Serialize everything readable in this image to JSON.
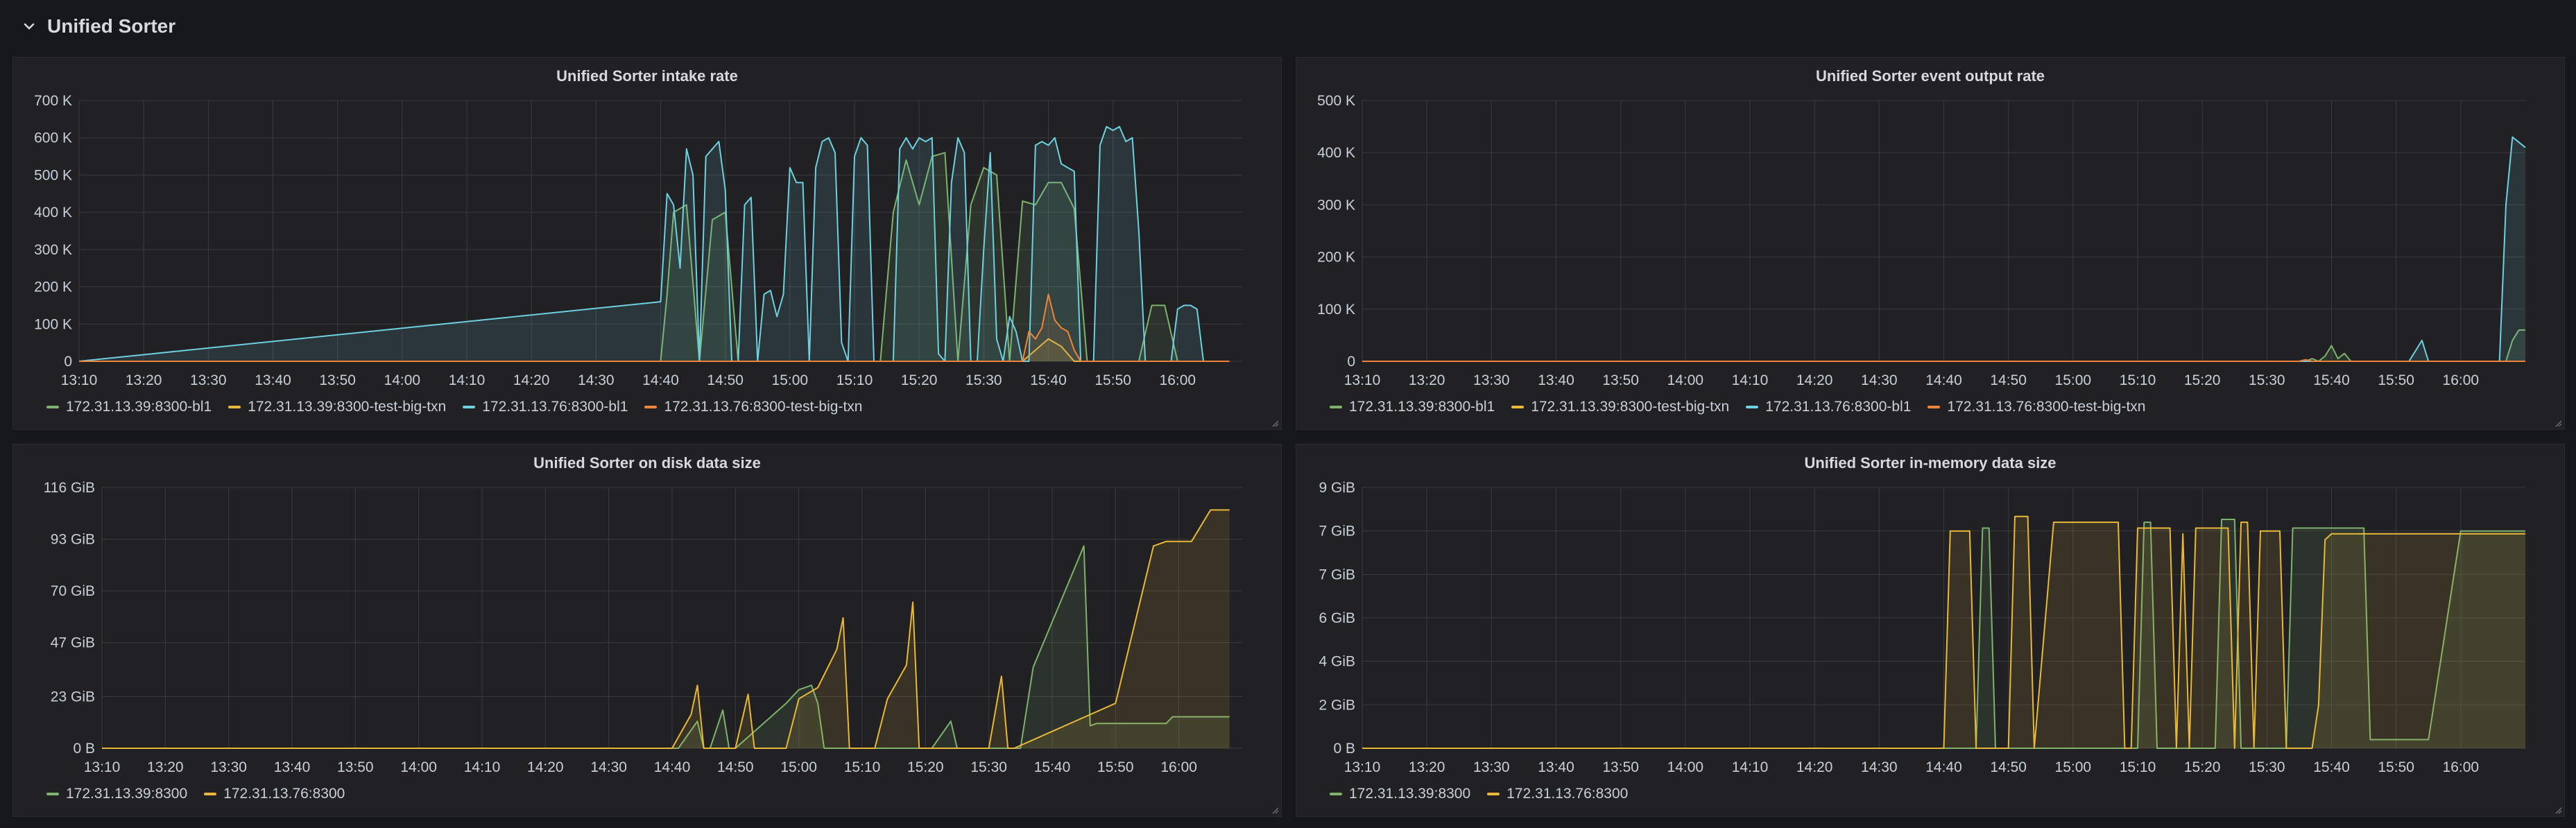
{
  "row": {
    "title": "Unified Sorter",
    "chevron_icon": "chevron-down-icon"
  },
  "chart_data": [
    {
      "id": "intake",
      "type": "area",
      "title": "Unified Sorter intake rate",
      "ylim": [
        0,
        700000
      ],
      "yticks": [
        0,
        100000,
        200000,
        300000,
        400000,
        500000,
        600000,
        700000
      ],
      "ytick_labels": [
        "0",
        "100 K",
        "200 K",
        "300 K",
        "400 K",
        "500 K",
        "600 K",
        "700 K"
      ],
      "xlim": [
        790,
        970
      ],
      "xticks": [
        "13:10",
        "13:20",
        "13:30",
        "13:40",
        "13:50",
        "14:00",
        "14:10",
        "14:20",
        "14:30",
        "14:40",
        "14:50",
        "15:00",
        "15:10",
        "15:20",
        "15:30",
        "15:40",
        "15:50",
        "16:00"
      ],
      "series": [
        {
          "name": "172.31.13.39:8300-bl1",
          "color": "#7eb26d",
          "x": [
            "13:10",
            "14:40",
            "14:41",
            "14:42",
            "14:44",
            "14:46",
            "14:48",
            "14:50",
            "14:52",
            "14:54",
            "14:56",
            "15:00",
            "15:02",
            "15:04",
            "15:06",
            "15:08",
            "15:10",
            "15:12",
            "15:14",
            "15:16",
            "15:18",
            "15:20",
            "15:22",
            "15:24",
            "15:26",
            "15:28",
            "15:30",
            "15:32",
            "15:34",
            "15:36",
            "15:38",
            "15:40",
            "15:42",
            "15:44",
            "15:46",
            "15:48",
            "15:50",
            "15:52",
            "15:54",
            "15:56",
            "15:58",
            "16:00",
            "16:08"
          ],
          "y": [
            0,
            0,
            180000,
            400000,
            420000,
            0,
            380000,
            400000,
            0,
            0,
            0,
            0,
            0,
            0,
            0,
            0,
            0,
            0,
            0,
            400000,
            540000,
            420000,
            550000,
            560000,
            0,
            420000,
            520000,
            500000,
            0,
            430000,
            420000,
            480000,
            480000,
            410000,
            0,
            0,
            0,
            0,
            0,
            150000,
            150000,
            0,
            0
          ]
        },
        {
          "name": "172.31.13.39:8300-test-big-txn",
          "color": "#eab839",
          "x": [
            "13:10",
            "15:36",
            "15:38",
            "15:40",
            "15:42",
            "15:44",
            "16:08"
          ],
          "y": [
            0,
            0,
            30000,
            60000,
            40000,
            0,
            0
          ]
        },
        {
          "name": "172.31.13.76:8300-bl1",
          "color": "#6ed0e0",
          "x": [
            "13:10",
            "14:40",
            "14:41",
            "14:42",
            "14:43",
            "14:44",
            "14:45",
            "14:46",
            "14:47",
            "14:48",
            "14:49",
            "14:50",
            "14:51",
            "14:52",
            "14:53",
            "14:54",
            "14:55",
            "14:56",
            "14:57",
            "14:58",
            "14:59",
            "15:00",
            "15:01",
            "15:02",
            "15:03",
            "15:04",
            "15:05",
            "15:06",
            "15:07",
            "15:08",
            "15:09",
            "15:10",
            "15:11",
            "15:12",
            "15:13",
            "15:14",
            "15:15",
            "15:16",
            "15:17",
            "15:18",
            "15:19",
            "15:20",
            "15:21",
            "15:22",
            "15:23",
            "15:24",
            "15:25",
            "15:26",
            "15:27",
            "15:28",
            "15:29",
            "15:30",
            "15:31",
            "15:32",
            "15:33",
            "15:34",
            "15:35",
            "15:36",
            "15:37",
            "15:38",
            "15:39",
            "15:40",
            "15:41",
            "15:42",
            "15:43",
            "15:44",
            "15:45",
            "15:46",
            "15:47",
            "15:48",
            "15:49",
            "15:50",
            "15:51",
            "15:52",
            "15:53",
            "15:54",
            "15:55",
            "15:56",
            "15:57",
            "15:58",
            "15:59",
            "16:00",
            "16:01",
            "16:02",
            "16:03",
            "16:04",
            "16:05",
            "16:06",
            "16:07",
            "16:08"
          ],
          "y": [
            0,
            160000,
            450000,
            420000,
            250000,
            570000,
            500000,
            0,
            550000,
            570000,
            590000,
            460000,
            0,
            0,
            420000,
            440000,
            0,
            180000,
            190000,
            120000,
            180000,
            520000,
            480000,
            480000,
            0,
            520000,
            590000,
            600000,
            560000,
            50000,
            0,
            550000,
            600000,
            580000,
            0,
            0,
            0,
            0,
            570000,
            600000,
            570000,
            600000,
            590000,
            600000,
            20000,
            0,
            480000,
            600000,
            560000,
            0,
            0,
            300000,
            560000,
            60000,
            0,
            120000,
            80000,
            0,
            0,
            580000,
            590000,
            580000,
            600000,
            530000,
            520000,
            510000,
            0,
            0,
            0,
            580000,
            630000,
            620000,
            630000,
            590000,
            600000,
            350000,
            0,
            0,
            0,
            0,
            0,
            140000,
            150000,
            150000,
            140000,
            0,
            0,
            0,
            0,
            0
          ]
        },
        {
          "name": "172.31.13.76:8300-test-big-txn",
          "color": "#ef843c",
          "x": [
            "13:10",
            "15:36",
            "15:37",
            "15:38",
            "15:39",
            "15:40",
            "15:41",
            "15:42",
            "15:43",
            "15:44",
            "15:45",
            "16:08"
          ],
          "y": [
            0,
            0,
            80000,
            60000,
            90000,
            180000,
            110000,
            90000,
            80000,
            30000,
            0,
            0
          ]
        }
      ]
    },
    {
      "id": "output",
      "type": "area",
      "title": "Unified Sorter event output rate",
      "ylim": [
        0,
        500000
      ],
      "yticks": [
        0,
        100000,
        200000,
        300000,
        400000,
        500000
      ],
      "ytick_labels": [
        "0",
        "100 K",
        "200 K",
        "300 K",
        "400 K",
        "500 K"
      ],
      "xlim": [
        790,
        970
      ],
      "xticks": [
        "13:10",
        "13:20",
        "13:30",
        "13:40",
        "13:50",
        "14:00",
        "14:10",
        "14:20",
        "14:30",
        "14:40",
        "14:50",
        "15:00",
        "15:10",
        "15:20",
        "15:30",
        "15:40",
        "15:50",
        "16:00"
      ],
      "series": [
        {
          "name": "172.31.13.39:8300-bl1",
          "color": "#7eb26d",
          "x": [
            "13:10",
            "15:36",
            "15:37",
            "15:38",
            "15:39",
            "15:40",
            "15:41",
            "15:42",
            "15:43",
            "16:07",
            "16:08",
            "16:09",
            "16:10"
          ],
          "y": [
            0,
            0,
            5000,
            0,
            10000,
            30000,
            5000,
            15000,
            0,
            0,
            40000,
            60000,
            60000
          ]
        },
        {
          "name": "172.31.13.39:8300-test-big-txn",
          "color": "#eab839",
          "x": [
            "13:10",
            "16:10"
          ],
          "y": [
            0,
            0
          ]
        },
        {
          "name": "172.31.13.76:8300-bl1",
          "color": "#6ed0e0",
          "x": [
            "13:10",
            "15:52",
            "15:53",
            "15:54",
            "15:55",
            "16:06",
            "16:07",
            "16:08",
            "16:09",
            "16:10"
          ],
          "y": [
            0,
            0,
            20000,
            40000,
            0,
            0,
            300000,
            430000,
            420000,
            410000
          ]
        },
        {
          "name": "172.31.13.76:8300-test-big-txn",
          "color": "#ef843c",
          "x": [
            "13:10",
            "15:35",
            "15:36",
            "15:37",
            "16:10"
          ],
          "y": [
            0,
            0,
            3000,
            0,
            0
          ]
        }
      ]
    },
    {
      "id": "disk",
      "type": "area",
      "title": "Unified Sorter on disk data size",
      "ylim": [
        0,
        116
      ],
      "yticks": [
        0,
        23,
        47,
        70,
        93,
        116
      ],
      "ytick_labels": [
        "0 B",
        "23 GiB",
        "47 GiB",
        "70 GiB",
        "93 GiB",
        "116 GiB"
      ],
      "xlim": [
        790,
        970
      ],
      "xticks": [
        "13:10",
        "13:20",
        "13:30",
        "13:40",
        "13:50",
        "14:00",
        "14:10",
        "14:20",
        "14:30",
        "14:40",
        "14:50",
        "15:00",
        "15:10",
        "15:20",
        "15:30",
        "15:40",
        "15:50",
        "16:00"
      ],
      "series": [
        {
          "name": "172.31.13.39:8300",
          "color": "#7eb26d",
          "x": [
            "13:10",
            "14:41",
            "14:44",
            "14:45",
            "14:46",
            "14:48",
            "14:49",
            "14:50",
            "14:58",
            "15:00",
            "15:02",
            "15:03",
            "15:04",
            "15:21",
            "15:24",
            "15:25",
            "15:26",
            "15:35",
            "15:37",
            "15:45",
            "15:46",
            "15:47",
            "15:58",
            "15:59",
            "16:08"
          ],
          "y": [
            0,
            0,
            12,
            0,
            0,
            17,
            0,
            0,
            20,
            26,
            28,
            20,
            0,
            0,
            12,
            0,
            0,
            0,
            36,
            90,
            10,
            11,
            11,
            14,
            14
          ]
        },
        {
          "name": "172.31.13.76:8300",
          "color": "#eab839",
          "x": [
            "13:10",
            "14:40",
            "14:43",
            "14:44",
            "14:45",
            "14:50",
            "14:52",
            "14:53",
            "14:58",
            "15:00",
            "15:03",
            "15:06",
            "15:07",
            "15:08",
            "15:12",
            "15:14",
            "15:17",
            "15:18",
            "15:19",
            "15:30",
            "15:32",
            "15:33",
            "15:34",
            "15:50",
            "15:56",
            "15:58",
            "16:02",
            "16:05",
            "16:08"
          ],
          "y": [
            0,
            0,
            15,
            28,
            0,
            0,
            24,
            0,
            0,
            22,
            27,
            44,
            58,
            0,
            0,
            22,
            37,
            65,
            0,
            0,
            32,
            0,
            0,
            20,
            90,
            92,
            92,
            106,
            106
          ]
        }
      ]
    },
    {
      "id": "memory",
      "type": "area",
      "title": "Unified Sorter in-memory data size",
      "ylim": [
        0,
        9
      ],
      "yticks": [
        0,
        1.5,
        3,
        4.5,
        6,
        7.5,
        9
      ],
      "ytick_labels": [
        "0 B",
        "2 GiB",
        "4 GiB",
        "6 GiB",
        "7 GiB",
        "7 GiB",
        "9 GiB"
      ],
      "xlim": [
        790,
        970
      ],
      "xticks": [
        "13:10",
        "13:20",
        "13:30",
        "13:40",
        "13:50",
        "14:00",
        "14:10",
        "14:20",
        "14:30",
        "14:40",
        "14:50",
        "15:00",
        "15:10",
        "15:20",
        "15:30",
        "15:40",
        "15:50",
        "16:00"
      ],
      "series": [
        {
          "name": "172.31.13.39:8300",
          "color": "#7eb26d",
          "x": [
            "13:10",
            "14:45",
            "14:46",
            "14:47",
            "14:48",
            "14:49",
            "15:10",
            "15:11",
            "15:12",
            "15:13",
            "15:14",
            "15:22",
            "15:23",
            "15:25",
            "15:26",
            "15:33",
            "15:34",
            "15:45",
            "15:46",
            "15:50",
            "15:55",
            "16:00",
            "16:10"
          ],
          "y": [
            0,
            0,
            7.6,
            7.6,
            0,
            0,
            0,
            7.8,
            7.8,
            0,
            0,
            0,
            7.9,
            7.9,
            0,
            0,
            7.6,
            7.6,
            0.3,
            0.3,
            0.3,
            7.5,
            7.5
          ]
        },
        {
          "name": "172.31.13.76:8300",
          "color": "#eab839",
          "x": [
            "13:10",
            "14:40",
            "14:41",
            "14:44",
            "14:45",
            "14:50",
            "14:51",
            "14:53",
            "14:54",
            "14:57",
            "14:58",
            "14:59",
            "15:07",
            "15:08",
            "15:09",
            "15:10",
            "15:15",
            "15:16",
            "15:17",
            "15:18",
            "15:19",
            "15:24",
            "15:25",
            "15:26",
            "15:27",
            "15:28",
            "15:29",
            "15:32",
            "15:33",
            "15:34",
            "15:37",
            "15:38",
            "15:39",
            "15:40",
            "15:41",
            "16:10"
          ],
          "y": [
            0,
            0,
            7.5,
            7.5,
            0,
            0,
            8.0,
            8.0,
            0,
            7.8,
            7.8,
            7.8,
            7.8,
            0,
            0,
            7.6,
            7.6,
            0,
            7.4,
            0,
            7.6,
            7.6,
            0,
            7.8,
            7.8,
            0,
            7.5,
            7.5,
            0,
            0,
            0,
            1.5,
            7.2,
            7.4,
            7.4,
            7.4
          ]
        }
      ]
    }
  ]
}
